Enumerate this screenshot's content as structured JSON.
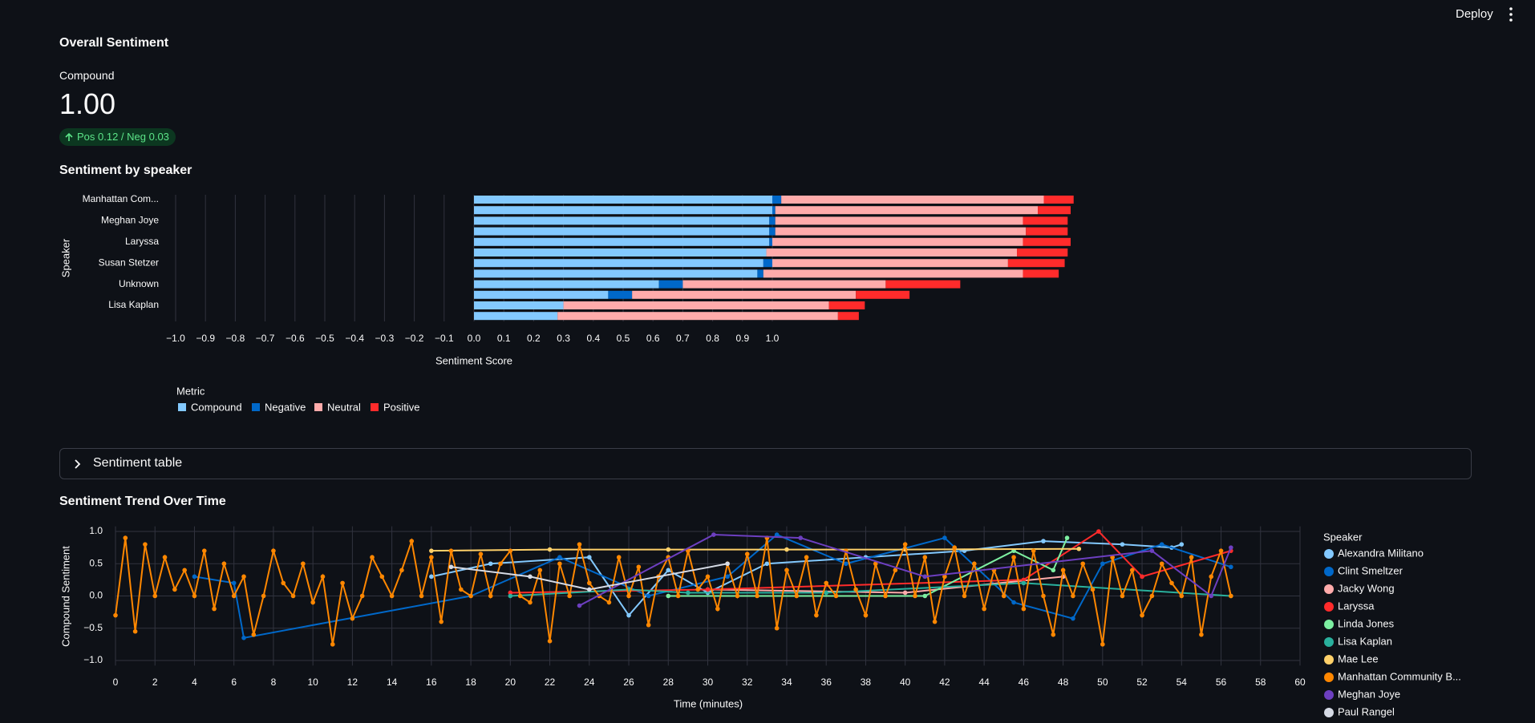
{
  "header": {
    "deploy": "Deploy"
  },
  "overall": {
    "title": "Overall Sentiment",
    "metric_label": "Compound",
    "metric_value": "1.00",
    "delta": "Pos 0.12 / Neg 0.03"
  },
  "sections": {
    "speaker_title": "Sentiment by speaker",
    "table_expander": "Sentiment table",
    "trend_title": "Sentiment Trend Over Time"
  },
  "chart_data": [
    {
      "type": "bar",
      "orientation": "horizontal",
      "stacked": true,
      "categories": [
        "Manhattan Com...",
        null,
        "Meghan Joye",
        null,
        "Laryssa",
        null,
        "Susan Stetzer",
        null,
        "Unknown",
        null,
        "Lisa Kaplan",
        null
      ],
      "series": [
        {
          "name": "Compound",
          "color": "#83c9ff",
          "values": [
            1.0,
            1.0,
            0.99,
            0.99,
            0.99,
            0.98,
            0.97,
            0.95,
            0.62,
            0.45,
            0.3,
            0.28
          ]
        },
        {
          "name": "Negative",
          "color": "#0068c9",
          "values": [
            0.03,
            0.01,
            0.02,
            0.02,
            0.01,
            0.0,
            0.03,
            0.02,
            0.08,
            0.08,
            0.0,
            0.0
          ]
        },
        {
          "name": "Neutral",
          "color": "#ffabab",
          "values": [
            0.88,
            0.88,
            0.83,
            0.84,
            0.84,
            0.84,
            0.79,
            0.87,
            0.68,
            0.75,
            0.89,
            0.94
          ]
        },
        {
          "name": "Positive",
          "color": "#ff2b2b",
          "values": [
            0.1,
            0.11,
            0.15,
            0.14,
            0.16,
            0.17,
            0.19,
            0.12,
            0.25,
            0.18,
            0.12,
            0.07
          ]
        }
      ],
      "xlim": [
        -1.0,
        2.05
      ],
      "xticks": [
        {
          "value": -1.0,
          "label": "−1.0"
        },
        {
          "value": -0.9,
          "label": "−0.9"
        },
        {
          "value": -0.8,
          "label": "−0.8"
        },
        {
          "value": -0.7,
          "label": "−0.7"
        },
        {
          "value": -0.6,
          "label": "−0.6"
        },
        {
          "value": -0.5,
          "label": "−0.5"
        },
        {
          "value": -0.4,
          "label": "−0.4"
        },
        {
          "value": -0.3,
          "label": "−0.3"
        },
        {
          "value": -0.2,
          "label": "−0.2"
        },
        {
          "value": -0.1,
          "label": "−0.1"
        },
        {
          "value": 0.0,
          "label": "0.0"
        },
        0.1,
        0.2,
        0.3,
        0.4,
        0.5,
        0.6,
        0.7,
        0.8,
        0.9,
        {
          "value": 1.0,
          "label": "1.0"
        }
      ],
      "xlabel": "Sentiment Score",
      "ylabel": "Speaker",
      "legend_title": "Metric",
      "grid": true
    },
    {
      "type": "line",
      "markers": true,
      "grid": true,
      "xlabel": "Time (minutes)",
      "ylabel": "Compound Sentiment",
      "legend_title": "Speaker",
      "xlim": [
        0,
        60
      ],
      "xticks": [
        0,
        2,
        4,
        6,
        8,
        10,
        12,
        14,
        16,
        18,
        20,
        22,
        24,
        26,
        28,
        30,
        32,
        34,
        36,
        38,
        40,
        42,
        44,
        46,
        48,
        50,
        52,
        54,
        56,
        58,
        60
      ],
      "ylim": [
        -1.08,
        1.08
      ],
      "yticks": [
        {
          "value": -1.0,
          "label": "−1.0"
        },
        {
          "value": -0.5,
          "label": "−0.5"
        },
        {
          "value": 0.0,
          "label": "0.0"
        },
        0.5,
        {
          "value": 1.0,
          "label": "1.0"
        }
      ],
      "series": [
        {
          "name": "Alexandra Militano",
          "color": "#83c9ff",
          "x": [
            16,
            19,
            24,
            26,
            28,
            30,
            33,
            38,
            43,
            47,
            51,
            53.5,
            54
          ],
          "values": [
            0.3,
            0.5,
            0.6,
            -0.3,
            0.4,
            0.05,
            0.5,
            0.6,
            0.7,
            0.85,
            0.8,
            0.75,
            0.8
          ]
        },
        {
          "name": "Clint Smeltzer",
          "color": "#0068c9",
          "x": [
            4,
            6,
            6.5,
            18,
            22.5,
            27,
            31,
            33.5,
            37,
            42,
            45.5,
            48.5,
            50,
            53,
            56.5
          ],
          "values": [
            0.3,
            0.2,
            -0.65,
            0.0,
            0.6,
            0.0,
            0.3,
            0.95,
            0.5,
            0.9,
            -0.1,
            -0.35,
            0.5,
            0.8,
            0.45
          ]
        },
        {
          "name": "Jacky Wong",
          "color": "#ffabab",
          "x": [
            30,
            40,
            48
          ],
          "values": [
            0.1,
            0.05,
            0.3
          ]
        },
        {
          "name": "Laryssa",
          "color": "#ff2b2b",
          "x": [
            20,
            30,
            46,
            49.8,
            52,
            56.5
          ],
          "values": [
            0.05,
            0.1,
            0.25,
            1.0,
            0.3,
            0.7
          ]
        },
        {
          "name": "Linda Jones",
          "color": "#7defa1",
          "x": [
            28,
            41,
            45.5,
            47.5,
            48.2
          ],
          "values": [
            0.0,
            0.0,
            0.7,
            0.4,
            0.9
          ]
        },
        {
          "name": "Lisa Kaplan",
          "color": "#29b09d",
          "x": [
            20,
            26,
            29,
            36,
            46,
            56.5
          ],
          "values": [
            0.0,
            0.1,
            0.05,
            0.05,
            0.2,
            0.0
          ]
        },
        {
          "name": "Mae Lee",
          "color": "#ffd16a",
          "x": [
            16,
            22,
            28,
            34,
            40,
            48.8
          ],
          "values": [
            0.7,
            0.72,
            0.72,
            0.72,
            0.72,
            0.73
          ]
        },
        {
          "name": "Manhattan Community B...",
          "color": "#ff8700",
          "x": [
            0,
            0.5,
            1,
            1.5,
            2,
            2.5,
            3,
            3.5,
            4,
            4.5,
            5,
            5.5,
            6,
            6.5,
            7,
            7.5,
            8,
            8.5,
            9,
            9.5,
            10,
            10.5,
            11,
            11.5,
            12,
            12.5,
            13,
            13.5,
            14,
            14.5,
            15,
            15.5,
            16,
            16.5,
            17,
            17.5,
            18,
            18.5,
            19,
            19.5,
            20,
            20.5,
            21,
            21.5,
            22,
            22.5,
            23,
            23.5,
            24,
            24.5,
            25,
            25.5,
            26,
            26.5,
            27,
            27.5,
            28,
            28.5,
            29,
            29.5,
            30,
            30.5,
            31,
            31.5,
            32,
            32.5,
            33,
            33.5,
            34,
            34.5,
            35,
            35.5,
            36,
            36.5,
            37,
            37.5,
            38,
            38.5,
            39,
            39.5,
            40,
            40.5,
            41,
            41.5,
            42,
            42.5,
            43,
            43.5,
            44,
            44.5,
            45,
            45.5,
            46,
            46.5,
            47,
            47.5,
            48,
            48.5,
            49,
            49.5,
            50,
            50.5,
            51,
            51.5,
            52,
            52.5,
            53,
            53.5,
            54,
            54.5,
            55,
            55.5,
            56,
            56.5
          ],
          "values": [
            -0.3,
            0.9,
            -0.55,
            0.8,
            0.0,
            0.6,
            0.1,
            0.4,
            0.0,
            0.7,
            -0.2,
            0.5,
            0.0,
            0.3,
            -0.6,
            0.0,
            0.7,
            0.2,
            0.0,
            0.5,
            -0.1,
            0.3,
            -0.75,
            0.2,
            -0.35,
            0.0,
            0.6,
            0.3,
            0.0,
            0.4,
            0.85,
            0.0,
            0.6,
            -0.4,
            0.7,
            0.1,
            0.0,
            0.65,
            0.0,
            0.5,
            0.7,
            0.0,
            -0.1,
            0.4,
            -0.7,
            0.5,
            0.0,
            0.8,
            0.2,
            0.0,
            -0.1,
            0.6,
            0.0,
            0.45,
            -0.45,
            0.3,
            0.6,
            0.0,
            0.7,
            0.1,
            0.3,
            -0.2,
            0.5,
            0.0,
            0.65,
            0.0,
            0.9,
            -0.5,
            0.4,
            0.0,
            0.6,
            -0.3,
            0.2,
            0.0,
            0.7,
            0.1,
            -0.3,
            0.5,
            0.0,
            0.4,
            0.8,
            0.0,
            0.6,
            -0.4,
            0.3,
            0.75,
            0.0,
            0.5,
            -0.2,
            0.4,
            0.0,
            0.6,
            -0.2,
            0.7,
            0.0,
            -0.6,
            0.4,
            0.0,
            0.5,
            0.1,
            -0.75,
            0.6,
            0.0,
            0.4,
            -0.3,
            0.0,
            0.5,
            0.2,
            0.0,
            0.6,
            -0.6,
            0.3,
            0.7,
            0.0
          ]
        },
        {
          "name": "Meghan Joye",
          "color": "#6d3fc0",
          "x": [
            23.5,
            30.3,
            34.7,
            41,
            52.5,
            55.5,
            56.5
          ],
          "values": [
            -0.15,
            0.95,
            0.9,
            0.3,
            0.7,
            0.0,
            0.75
          ]
        },
        {
          "name": "Paul Rangel",
          "color": "#d5dae5",
          "x": [
            17,
            21,
            24,
            31
          ],
          "values": [
            0.45,
            0.3,
            0.1,
            0.5
          ]
        }
      ]
    }
  ]
}
